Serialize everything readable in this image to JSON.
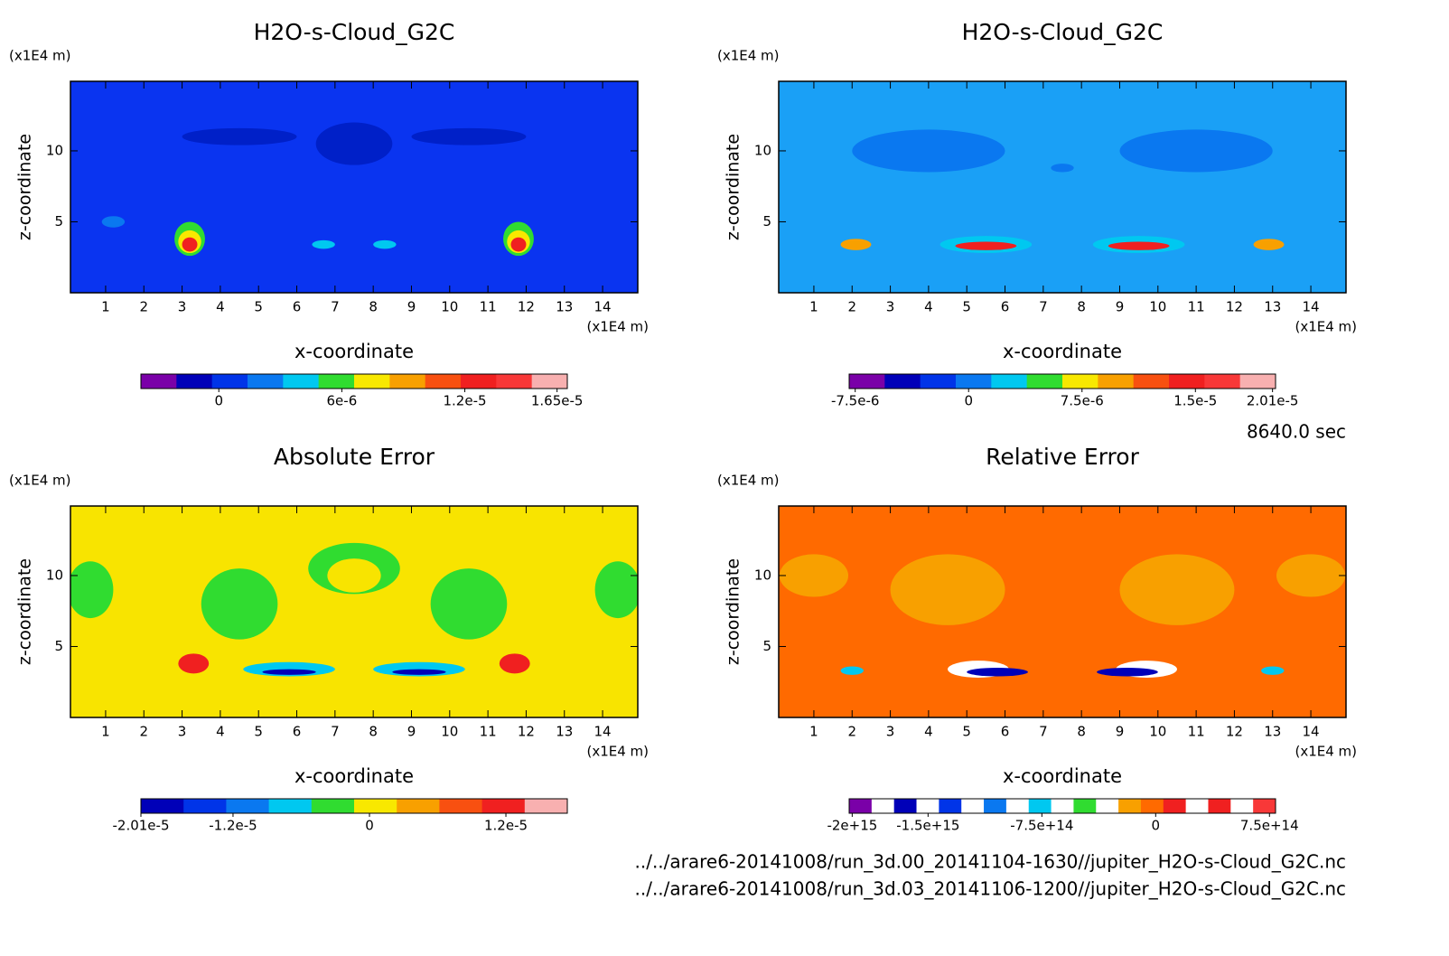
{
  "chart_data": [
    {
      "type": "contour",
      "title": "H2O-s-Cloud_G2C",
      "xlabel": "x-coordinate",
      "ylabel": "z-coordinate",
      "xunit": "(x1E4 m)",
      "yunit": "(x1E4 m)",
      "xlim": [
        0.08,
        14.92
      ],
      "ylim": [
        0,
        14.9
      ],
      "xticks": [
        1,
        2,
        3,
        4,
        5,
        6,
        7,
        8,
        9,
        10,
        11,
        12,
        13,
        14
      ],
      "yticks": [
        5,
        10
      ],
      "background_color": "#0a34f0",
      "colorbar_colors": [
        "#7a00a8",
        "#0000b8",
        "#0034e8",
        "#0a78f0",
        "#00c8f0",
        "#30dc30",
        "#f8e800",
        "#f8a000",
        "#f85010",
        "#f02020",
        "#f83838",
        "#f8b0b0"
      ],
      "cblim": [
        -3.8e-06,
        1.7e-05
      ],
      "cbticks": [
        0,
        {
          "value": 6e-06,
          "label": "6e-6"
        },
        {
          "value": 1.2e-05,
          "label": "1.2e-5"
        },
        {
          "value": 1.65e-05,
          "label": "1.65e-5"
        }
      ]
    },
    {
      "type": "contour",
      "title": "H2O-s-Cloud_G2C",
      "xlabel": "x-coordinate",
      "ylabel": "z-coordinate",
      "xunit": "(x1E4 m)",
      "yunit": "(x1E4 m)",
      "xlim": [
        0.08,
        14.92
      ],
      "ylim": [
        0,
        14.9
      ],
      "xticks": [
        1,
        2,
        3,
        4,
        5,
        6,
        7,
        8,
        9,
        10,
        11,
        12,
        13,
        14
      ],
      "yticks": [
        5,
        10
      ],
      "background_color": "#1aa0f6",
      "colorbar_colors": [
        "#7a00a8",
        "#0000b8",
        "#0034e8",
        "#0a78f0",
        "#00c8f0",
        "#30dc30",
        "#f8e800",
        "#f8a000",
        "#f85010",
        "#f02020",
        "#f83838",
        "#f8b0b0"
      ],
      "cblim": [
        -7.9e-06,
        2.03e-05
      ],
      "cbticks": [
        {
          "value": -7.5e-06,
          "label": "-7.5e-6"
        },
        0,
        {
          "value": 7.5e-06,
          "label": "7.5e-6"
        },
        {
          "value": 1.5e-05,
          "label": "1.5e-5"
        },
        {
          "value": 2.01e-05,
          "label": "2.01e-5"
        }
      ]
    },
    {
      "type": "contour",
      "title": "Absolute Error",
      "xlabel": "x-coordinate",
      "ylabel": "z-coordinate",
      "xunit": "(x1E4 m)",
      "yunit": "(x1E4 m)",
      "xlim": [
        0.08,
        14.92
      ],
      "ylim": [
        0,
        14.9
      ],
      "xticks": [
        1,
        2,
        3,
        4,
        5,
        6,
        7,
        8,
        9,
        10,
        11,
        12,
        13,
        14
      ],
      "yticks": [
        5,
        10
      ],
      "background_color": "#f8e400",
      "colorbar_colors": [
        "#0000b8",
        "#0034e8",
        "#0a78f0",
        "#00c8f0",
        "#30dc30",
        "#f8e800",
        "#f8a000",
        "#f85010",
        "#f02020",
        "#f8b0b0"
      ],
      "cblim": [
        -2.01e-05,
        1.74e-05
      ],
      "cbticks": [
        {
          "value": -2.01e-05,
          "label": "-2.01e-5"
        },
        {
          "value": -1.2e-05,
          "label": "-1.2e-5"
        },
        0,
        {
          "value": 1.2e-05,
          "label": "1.2e-5"
        }
      ]
    },
    {
      "type": "contour",
      "title": "Relative Error",
      "xlabel": "x-coordinate",
      "ylabel": "z-coordinate",
      "xunit": "(x1E4 m)",
      "yunit": "(x1E4 m)",
      "xlim": [
        0.08,
        14.92
      ],
      "ylim": [
        0,
        14.9
      ],
      "xticks": [
        1,
        2,
        3,
        4,
        5,
        6,
        7,
        8,
        9,
        10,
        11,
        12,
        13,
        14
      ],
      "yticks": [
        5,
        10
      ],
      "background_color": "#ff6a00",
      "colorbar_colors": [
        "#7a00a8",
        "#ffffff",
        "#0000b8",
        "#ffffff",
        "#0034e8",
        "#ffffff",
        "#0a78f0",
        "#ffffff",
        "#00c8f0",
        "#ffffff",
        "#30dc30",
        "#ffffff",
        "#f8a000",
        "#ff6a00",
        "#f02020",
        "#ffffff",
        "#f02020",
        "#ffffff",
        "#f83838"
      ],
      "cblim": [
        -2020000000000000.0,
        790000000000000.0
      ],
      "cbticks": [
        {
          "value": -2000000000000000.0,
          "label": "-2e+15"
        },
        {
          "value": -1500000000000000.0,
          "label": "-1.5e+15"
        },
        {
          "value": -750000000000000.0,
          "label": "-7.5e+14"
        },
        0,
        {
          "value": 750000000000000.0,
          "label": "7.5e+14"
        }
      ]
    }
  ],
  "time_label": "8640.0 sec",
  "files": [
    "../../arare6-20141008/run_3d.00_20141104-1630//jupiter_H2O-s-Cloud_G2C.nc",
    "../../arare6-20141008/run_3d.03_20141106-1200//jupiter_H2O-s-Cloud_G2C.nc"
  ]
}
